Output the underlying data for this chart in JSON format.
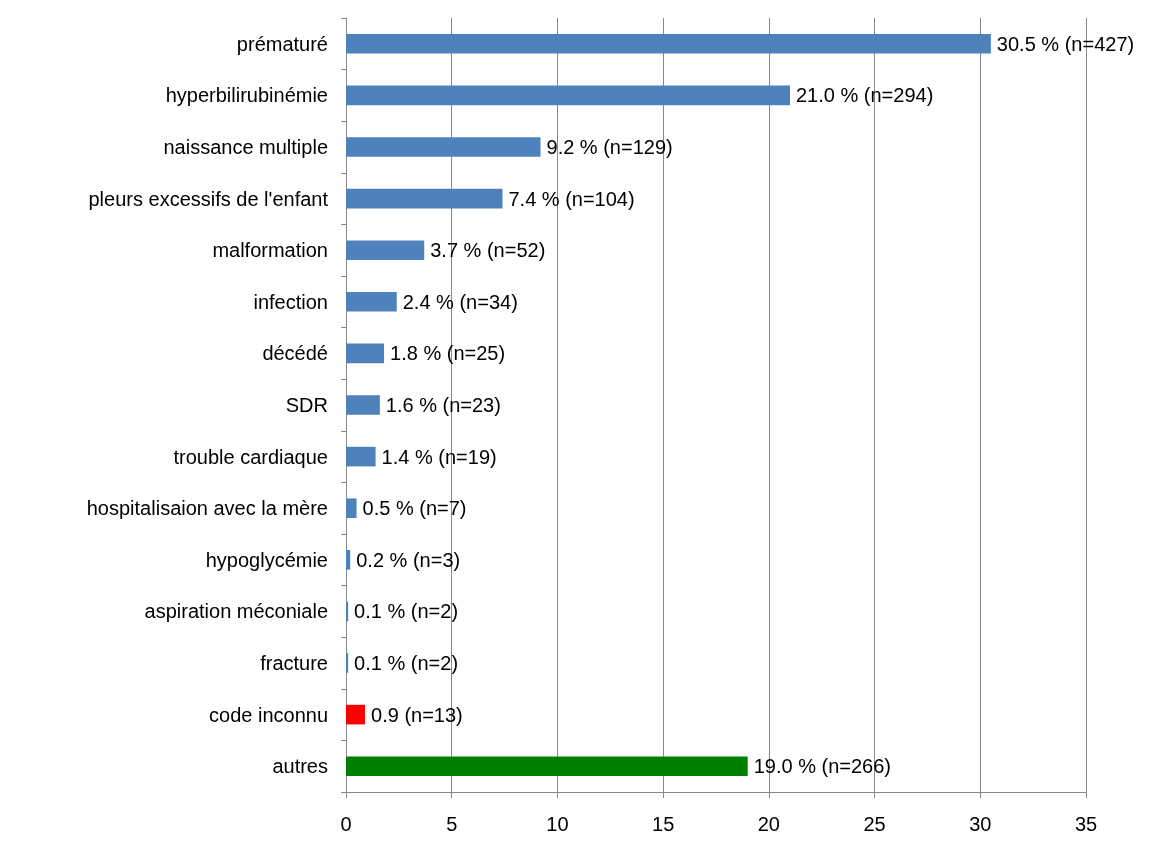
{
  "chart_data": {
    "type": "bar",
    "orientation": "horizontal",
    "categories": [
      "prématuré",
      "hyperbilirubinémie",
      "naissance multiple",
      "pleurs excessifs de l'enfant",
      "malformation",
      "infection",
      "décédé",
      "SDR",
      "trouble cardiaque",
      "hospitalisaion avec la mère",
      "hypoglycémie",
      "aspiration méconiale",
      "fracture",
      "code inconnu",
      "autres"
    ],
    "values": [
      30.5,
      21.0,
      9.2,
      7.4,
      3.7,
      2.4,
      1.8,
      1.6,
      1.4,
      0.5,
      0.2,
      0.1,
      0.1,
      0.9,
      19.0
    ],
    "colors": [
      "#4f81bd",
      "#4f81bd",
      "#4f81bd",
      "#4f81bd",
      "#4f81bd",
      "#4f81bd",
      "#4f81bd",
      "#4f81bd",
      "#4f81bd",
      "#4f81bd",
      "#4f81bd",
      "#4f81bd",
      "#4f81bd",
      "#ff0000",
      "#008000"
    ],
    "value_labels": [
      "30.5 % (n=427)",
      "21.0 % (n=294)",
      "9.2 % (n=129)",
      "7.4 % (n=104)",
      "3.7 % (n=52)",
      "2.4 % (n=34)",
      "1.8 % (n=25)",
      "1.6 % (n=23)",
      "1.4 % (n=19)",
      "0.5 % (n=7)",
      "0.2 % (n=3)",
      "0.1 % (n=2)",
      "0.1 % (n=2)",
      "0.9 (n=13)",
      "19.0 % (n=266)"
    ],
    "xlim": [
      0,
      35
    ],
    "xticks": [
      0,
      5,
      10,
      15,
      20,
      25,
      30,
      35
    ],
    "grid": "x"
  }
}
